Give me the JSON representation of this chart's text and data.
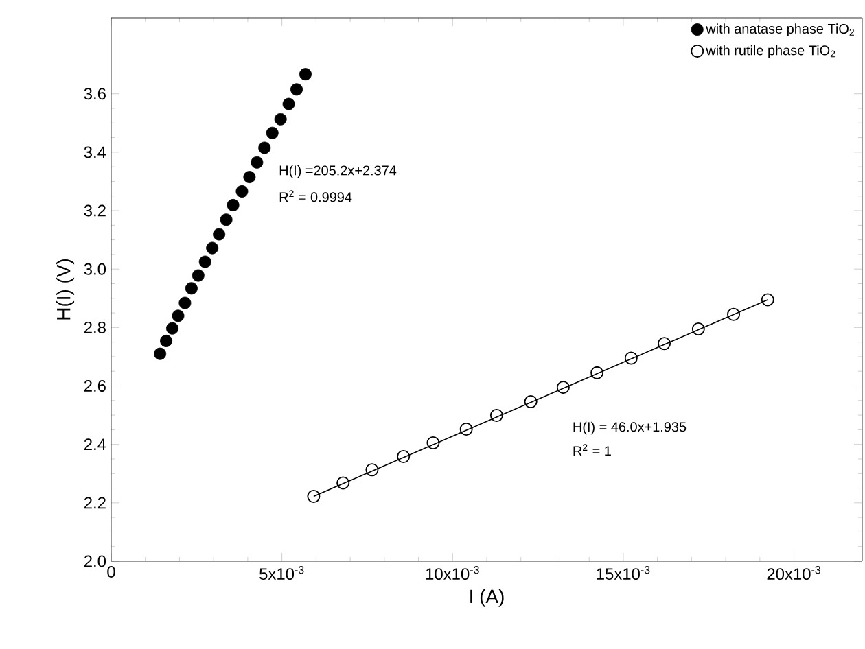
{
  "chart_data": {
    "type": "scatter",
    "xlabel": "I (A)",
    "ylabel": "H(I) (V)",
    "xlim": [
      0,
      0.022
    ],
    "ylim": [
      2.0,
      3.86
    ],
    "xticks": [
      0,
      {
        "value": 0.005,
        "label": "5x10$^{-3}$"
      },
      {
        "value": 0.01,
        "label": "10x10$^{-3}$"
      },
      {
        "value": 0.015,
        "label": "15x10$^{-3}$"
      },
      {
        "value": 0.02,
        "label": "20x10$^{-3}$"
      }
    ],
    "yticks": [
      {
        "value": 2.0,
        "label": "2.0"
      },
      {
        "value": 2.2,
        "label": "2.2"
      },
      {
        "value": 2.4,
        "label": "2.4"
      },
      {
        "value": 2.6,
        "label": "2.6"
      },
      {
        "value": 2.8,
        "label": "2.8"
      },
      {
        "value": 3.0,
        "label": "3.0"
      },
      {
        "value": 3.2,
        "label": "3.2"
      },
      {
        "value": 3.4,
        "label": "3.4"
      },
      {
        "value": 3.6,
        "label": "3.6"
      }
    ],
    "legend": "top right",
    "series": [
      {
        "name": "with anatase phase TiO$_{2}$",
        "color": "#000000",
        "marker": "circle",
        "x": [
          0.00143,
          0.00161,
          0.00179,
          0.00196,
          0.00216,
          0.00235,
          0.00255,
          0.00275,
          0.00296,
          0.00316,
          0.00337,
          0.00357,
          0.00383,
          0.00405,
          0.00427,
          0.00449,
          0.00472,
          0.00496,
          0.0052,
          0.00543,
          0.00569
        ],
        "values": [
          2.71,
          2.754,
          2.797,
          2.84,
          2.884,
          2.934,
          2.978,
          3.025,
          3.072,
          3.119,
          3.169,
          3.219,
          3.266,
          3.315,
          3.365,
          3.415,
          3.466,
          3.513,
          3.565,
          3.615,
          3.667
        ]
      },
      {
        "name": "with rutile phase TiO$_{2}$",
        "color": "#000000",
        "marker": "open circle",
        "x": [
          0.00593,
          0.00679,
          0.00764,
          0.00856,
          0.00943,
          0.0104,
          0.01129,
          0.01229,
          0.01324,
          0.01423,
          0.01523,
          0.0162,
          0.0172,
          0.01823,
          0.01923
        ],
        "values": [
          2.222,
          2.268,
          2.313,
          2.358,
          2.405,
          2.452,
          2.499,
          2.546,
          2.595,
          2.645,
          2.695,
          2.745,
          2.795,
          2.845,
          2.895
        ]
      },
      {
        "type": "line",
        "color": "#000000",
        "marker": "none",
        "x": [
          0.00593,
          0.01923
        ],
        "values": [
          2.222,
          2.895
        ]
      }
    ],
    "annotations": [
      "H(I) =205.2x+2.374",
      "R$^{2}$ = 0.9994",
      "H(I) = 46.0x+1.935",
      "R$^{2}$ = 1"
    ]
  }
}
